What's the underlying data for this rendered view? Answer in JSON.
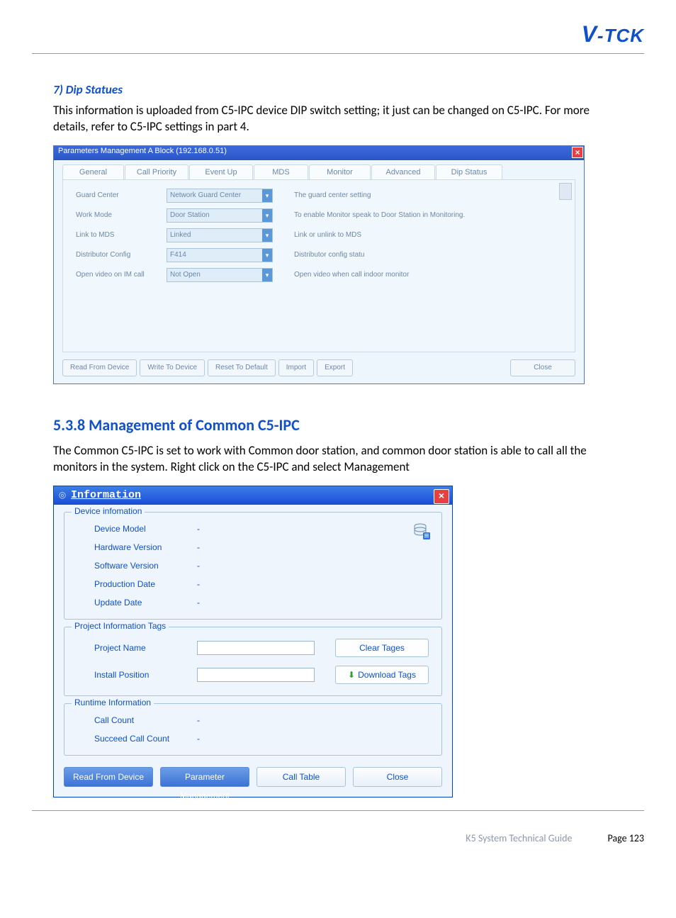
{
  "logo_text": "V-TCK",
  "section1": {
    "title": "7) Dip Statues",
    "body": "This information is uploaded from C5-IPC device DIP switch setting; it just can be changed on C5-IPC. For more details, refer to C5-IPC settings in part 4."
  },
  "screenshot1": {
    "title": "Parameters Management A Block (192.168.0.51)",
    "tabs": [
      "General",
      "Call Priority",
      "Event Up",
      "MDS",
      "Monitor",
      "Advanced",
      "Dip Status"
    ],
    "tab_widths": [
      85,
      88,
      88,
      75,
      85,
      88,
      92
    ],
    "rows": [
      {
        "label": "Guard Center",
        "value": "Network Guard Center",
        "desc": "The guard center setting"
      },
      {
        "label": "Work Mode",
        "value": "Door Station",
        "desc": "To enable Monitor speak to Door Station in Monitoring."
      },
      {
        "label": "Link to MDS",
        "value": "Linked",
        "desc": "Link or unlink to MDS"
      },
      {
        "label": "Distributor Config",
        "value": "F414",
        "desc": "Distributor config statu"
      },
      {
        "label": "Open video on IM call",
        "value": "Not Open",
        "desc": "Open video when call indoor monitor"
      }
    ],
    "buttons_left": [
      "Read From Device",
      "Write To Device",
      "Reset To Default",
      "Import",
      "Export"
    ],
    "button_close": "Close"
  },
  "section2": {
    "title": "5.3.8 Management of Common C5-IPC",
    "body": "The Common C5-IPC is set to work with Common door station, and common door station is able to call all the monitors in the system. Right click on the C5-IPC and select Management"
  },
  "screenshot2": {
    "title": "Information",
    "group1": {
      "legend": "Device infomation",
      "rows": [
        {
          "label": "Device Model",
          "value": "-"
        },
        {
          "label": "Hardware Version",
          "value": "-"
        },
        {
          "label": "Software Version",
          "value": "-"
        },
        {
          "label": "Production Date",
          "value": "-"
        },
        {
          "label": "Update Date",
          "value": "-"
        }
      ]
    },
    "group2": {
      "legend": "Project Information Tags",
      "project_name_label": "Project Name",
      "install_position_label": "Install Position",
      "clear_btn": "Clear Tages",
      "download_btn": "Download Tags"
    },
    "group3": {
      "legend": "Runtime Information",
      "rows": [
        {
          "label": "Call Count",
          "value": "-"
        },
        {
          "label": "Succeed Call Count",
          "value": "-"
        }
      ]
    },
    "bottom_buttons": [
      {
        "label": "Read From Device",
        "primary": true
      },
      {
        "label": "Parameter Management",
        "primary": true
      },
      {
        "label": "Call Table",
        "primary": false
      },
      {
        "label": "Close",
        "primary": false
      }
    ]
  },
  "footer": {
    "guide": "K5 System Technical Guide",
    "page": "Page 123"
  }
}
